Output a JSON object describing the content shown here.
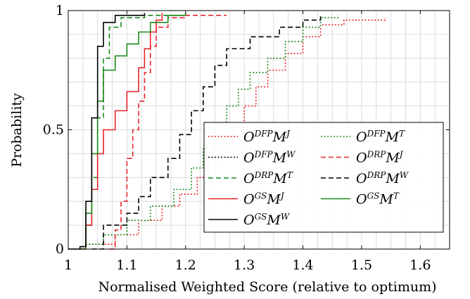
{
  "chart_data": {
    "type": "line",
    "xlabel": "Normalised Weighted Score (relative to optimum)",
    "ylabel": "Probability",
    "xlim": [
      1,
      1.65
    ],
    "ylim": [
      0,
      1
    ],
    "xticks": [
      1,
      1.1,
      1.2,
      1.3,
      1.4,
      1.5,
      1.6
    ],
    "xtick_labels": [
      "1",
      "1.1",
      "1.2",
      "1.3",
      "1.4",
      "1.5",
      "1.6"
    ],
    "yticks": [
      0,
      0.5,
      1
    ],
    "ytick_labels": [
      "0",
      "0.5",
      "1"
    ],
    "grid": true,
    "legend_position": "lower right",
    "series": [
      {
        "name": "O^DFP M^J",
        "legend": {
          "base": "O",
          "sup1": "DFP",
          "mid": "M",
          "sup2": "J"
        },
        "color": "#e8232a",
        "dash": "dotted",
        "legend_col": 0,
        "legend_row": 0,
        "points": [
          [
            1.0,
            0.0
          ],
          [
            1.03,
            0.02
          ],
          [
            1.08,
            0.06
          ],
          [
            1.12,
            0.12
          ],
          [
            1.16,
            0.18
          ],
          [
            1.19,
            0.23
          ],
          [
            1.22,
            0.3
          ],
          [
            1.24,
            0.37
          ],
          [
            1.26,
            0.43
          ],
          [
            1.28,
            0.51
          ],
          [
            1.3,
            0.6
          ],
          [
            1.32,
            0.68
          ],
          [
            1.34,
            0.75
          ],
          [
            1.37,
            0.82
          ],
          [
            1.4,
            0.89
          ],
          [
            1.43,
            0.94
          ],
          [
            1.47,
            0.96
          ],
          [
            1.54,
            0.97
          ]
        ]
      },
      {
        "name": "O^DFP M^T",
        "legend": {
          "base": "O",
          "sup1": "DFP",
          "mid": "M",
          "sup2": "T"
        },
        "color": "#1a8a1a",
        "dash": "dotted",
        "legend_col": 1,
        "legend_row": 0,
        "points": [
          [
            1.0,
            0.0
          ],
          [
            1.03,
            0.02
          ],
          [
            1.06,
            0.06
          ],
          [
            1.1,
            0.12
          ],
          [
            1.14,
            0.18
          ],
          [
            1.18,
            0.25
          ],
          [
            1.21,
            0.34
          ],
          [
            1.23,
            0.42
          ],
          [
            1.25,
            0.52
          ],
          [
            1.27,
            0.6
          ],
          [
            1.29,
            0.67
          ],
          [
            1.31,
            0.74
          ],
          [
            1.34,
            0.8
          ],
          [
            1.37,
            0.87
          ],
          [
            1.4,
            0.93
          ],
          [
            1.43,
            0.97
          ],
          [
            1.46,
            0.98
          ]
        ]
      },
      {
        "name": "O^DFP M^W",
        "legend": {
          "base": "O",
          "sup1": "DFP",
          "mid": "M",
          "sup2": "W"
        },
        "color": "#000000",
        "dash": "dotted",
        "legend_col": 0,
        "legend_row": 1,
        "points": []
      },
      {
        "name": "O^DRP M^J",
        "legend": {
          "base": "O",
          "sup1": "DRP",
          "mid": "M",
          "sup2": "J"
        },
        "color": "#e8232a",
        "dash": "dashed",
        "legend_col": 1,
        "legend_row": 1,
        "points": [
          [
            1.07,
            0.0
          ],
          [
            1.08,
            0.08
          ],
          [
            1.09,
            0.2
          ],
          [
            1.1,
            0.38
          ],
          [
            1.11,
            0.5
          ],
          [
            1.12,
            0.62
          ],
          [
            1.13,
            0.74
          ],
          [
            1.14,
            0.85
          ],
          [
            1.15,
            0.93
          ],
          [
            1.17,
            0.97
          ],
          [
            1.2,
            0.98
          ],
          [
            1.27,
            0.98
          ]
        ]
      },
      {
        "name": "O^DRP M^T",
        "legend": {
          "base": "O",
          "sup1": "DRP",
          "mid": "M",
          "sup2": "T"
        },
        "color": "#1a8a1a",
        "dash": "dashed",
        "legend_col": 0,
        "legend_row": 2,
        "points": [
          [
            1.02,
            0.0
          ],
          [
            1.03,
            0.1
          ],
          [
            1.04,
            0.3
          ],
          [
            1.05,
            0.55
          ],
          [
            1.06,
            0.8
          ],
          [
            1.07,
            0.93
          ],
          [
            1.09,
            0.97
          ],
          [
            1.13,
            0.98
          ],
          [
            1.2,
            0.98
          ]
        ]
      },
      {
        "name": "O^DRP M^W",
        "legend": {
          "base": "O",
          "sup1": "DRP",
          "mid": "M",
          "sup2": "W"
        },
        "color": "#000000",
        "dash": "dashed",
        "legend_col": 1,
        "legend_row": 2,
        "points": [
          [
            1.04,
            0.0
          ],
          [
            1.06,
            0.1
          ],
          [
            1.1,
            0.15
          ],
          [
            1.12,
            0.22
          ],
          [
            1.14,
            0.3
          ],
          [
            1.17,
            0.38
          ],
          [
            1.19,
            0.48
          ],
          [
            1.21,
            0.58
          ],
          [
            1.23,
            0.68
          ],
          [
            1.25,
            0.77
          ],
          [
            1.27,
            0.84
          ],
          [
            1.31,
            0.89
          ],
          [
            1.36,
            0.93
          ],
          [
            1.4,
            0.96
          ],
          [
            1.43,
            0.98
          ]
        ]
      },
      {
        "name": "O^GS M^J",
        "legend": {
          "base": "O",
          "sup1": "GS",
          "mid": "M",
          "sup2": "J"
        },
        "color": "#e8232a",
        "dash": "solid",
        "legend_col": 0,
        "legend_row": 3,
        "points": [
          [
            1.02,
            0.0
          ],
          [
            1.03,
            0.1
          ],
          [
            1.04,
            0.25
          ],
          [
            1.05,
            0.4
          ],
          [
            1.06,
            0.5
          ],
          [
            1.08,
            0.58
          ],
          [
            1.1,
            0.66
          ],
          [
            1.12,
            0.76
          ],
          [
            1.13,
            0.84
          ],
          [
            1.14,
            0.91
          ],
          [
            1.15,
            0.96
          ],
          [
            1.16,
            0.99
          ]
        ]
      },
      {
        "name": "O^GS M^T",
        "legend": {
          "base": "O",
          "sup1": "GS",
          "mid": "M",
          "sup2": "T"
        },
        "color": "#1a8a1a",
        "dash": "solid",
        "legend_col": 1,
        "legend_row": 3,
        "points": [
          [
            1.02,
            0.0
          ],
          [
            1.03,
            0.15
          ],
          [
            1.04,
            0.4
          ],
          [
            1.05,
            0.62
          ],
          [
            1.06,
            0.75
          ],
          [
            1.08,
            0.81
          ],
          [
            1.1,
            0.86
          ],
          [
            1.12,
            0.91
          ],
          [
            1.14,
            0.95
          ],
          [
            1.17,
            0.98
          ],
          [
            1.2,
            0.99
          ]
        ]
      },
      {
        "name": "O^GS M^W",
        "legend": {
          "base": "O",
          "sup1": "GS",
          "mid": "M",
          "sup2": "W"
        },
        "color": "#000000",
        "dash": "solid",
        "legend_col": 0,
        "legend_row": 4,
        "points": [
          [
            1.0,
            0.0
          ],
          [
            1.02,
            0.01
          ],
          [
            1.03,
            0.2
          ],
          [
            1.04,
            0.55
          ],
          [
            1.05,
            0.85
          ],
          [
            1.06,
            0.95
          ],
          [
            1.08,
            0.98
          ],
          [
            1.13,
            0.99
          ]
        ]
      }
    ]
  }
}
